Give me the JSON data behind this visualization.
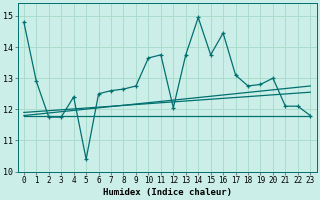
{
  "title": "",
  "xlabel": "Humidex (Indice chaleur)",
  "xlim": [
    -0.5,
    23.5
  ],
  "ylim": [
    10,
    15.4
  ],
  "yticks": [
    10,
    11,
    12,
    13,
    14,
    15
  ],
  "xticks": [
    0,
    1,
    2,
    3,
    4,
    5,
    6,
    7,
    8,
    9,
    10,
    11,
    12,
    13,
    14,
    15,
    16,
    17,
    18,
    19,
    20,
    21,
    22,
    23
  ],
  "bg_color": "#cceee8",
  "grid_color": "#aaddcc",
  "line_color": "#007070",
  "line1_x": [
    0,
    1,
    2,
    3,
    4,
    5,
    6,
    7,
    8,
    9,
    10,
    11,
    12,
    13,
    14,
    15,
    16,
    17,
    18,
    19,
    20,
    21,
    22,
    23
  ],
  "line1_y": [
    14.8,
    12.9,
    11.75,
    11.75,
    12.4,
    10.4,
    12.5,
    12.6,
    12.65,
    12.75,
    13.65,
    13.75,
    12.05,
    13.75,
    14.95,
    13.75,
    14.45,
    13.1,
    12.75,
    12.8,
    13.0,
    12.1,
    12.1,
    11.8
  ],
  "line2_x": [
    0,
    23
  ],
  "line2_y": [
    11.8,
    11.8
  ],
  "line3_x": [
    0,
    23
  ],
  "line3_y": [
    11.8,
    12.75
  ],
  "line4_x": [
    0,
    23
  ],
  "line4_y": [
    11.9,
    12.55
  ]
}
